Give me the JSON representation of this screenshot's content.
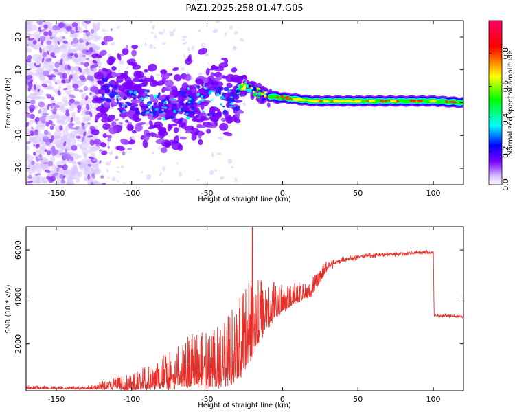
{
  "title": "PAZ1.2025.258.01.47.G05",
  "chart_data": [
    {
      "type": "heatmap",
      "name": "spectrogram",
      "xlabel": "Height of straight line (km)",
      "ylabel": "Frequency (Hz)",
      "xlim": [
        -170,
        120
      ],
      "ylim": [
        -25,
        25
      ],
      "xticks": [
        -150,
        -100,
        -50,
        0,
        50,
        100
      ],
      "yticks": [
        -20,
        -10,
        0,
        10,
        20
      ],
      "xtick_labels": [
        "-150",
        "-100",
        "-50",
        "0",
        "50",
        "100"
      ],
      "ytick_labels": [
        "-20",
        "-10",
        "0",
        "10",
        "20"
      ],
      "ridge_frequency_hz": [
        [
          -120,
          3
        ],
        [
          -110,
          2
        ],
        [
          -100,
          1
        ],
        [
          -90,
          0
        ],
        [
          -80,
          -1
        ],
        [
          -70,
          -1.5
        ],
        [
          -60,
          0
        ],
        [
          -50,
          2
        ],
        [
          -40,
          1
        ],
        [
          -33,
          0
        ],
        [
          -30,
          4
        ],
        [
          -25,
          5
        ],
        [
          -20,
          4
        ],
        [
          -15,
          3
        ],
        [
          -10,
          2
        ],
        [
          0,
          1.5
        ],
        [
          20,
          0.5
        ],
        [
          50,
          0.5
        ],
        [
          100,
          0.5
        ],
        [
          120,
          0
        ]
      ],
      "colorbar": {
        "label": "Normalized spectral amplitude",
        "range": [
          0,
          1
        ],
        "ticks": [
          0.0,
          0.2,
          0.4,
          0.6,
          0.8
        ],
        "tick_labels": [
          "0.0",
          "0.2",
          "0.4",
          "0.6",
          "0.8"
        ],
        "colors": [
          "#ffffff",
          "#7b00ff",
          "#0000ff",
          "#00ffff",
          "#00ff00",
          "#ffff00",
          "#ff0000",
          "#ff0066"
        ]
      }
    },
    {
      "type": "line",
      "name": "snr",
      "xlabel": "Height of straight line (km)",
      "ylabel": "SNR (10 * v/v)",
      "xlim": [
        -170,
        120
      ],
      "ylim": [
        0,
        7000
      ],
      "xticks": [
        -150,
        -100,
        -50,
        0,
        50,
        100
      ],
      "yticks": [
        2000,
        4000,
        6000
      ],
      "xtick_labels": [
        "-150",
        "-100",
        "-50",
        "0",
        "50",
        "100"
      ],
      "ytick_labels": [
        "2000",
        "4000",
        "6000"
      ],
      "color": "#e8302a",
      "envelope": {
        "x": [
          -170,
          -130,
          -120,
          -110,
          -100,
          -90,
          -80,
          -70,
          -60,
          -50,
          -40,
          -30,
          -25,
          -20,
          -15,
          -10,
          -5,
          0,
          10,
          20,
          25,
          30,
          40,
          50,
          60,
          70,
          80,
          90,
          100,
          100.5,
          110,
          120
        ],
        "mean": [
          120,
          100,
          150,
          200,
          250,
          350,
          500,
          650,
          800,
          900,
          1000,
          1400,
          1800,
          2300,
          2900,
          3300,
          3500,
          3700,
          4000,
          4300,
          4800,
          5300,
          5600,
          5700,
          5780,
          5820,
          5850,
          5900,
          5900,
          3200,
          3200,
          3150
        ],
        "spread": [
          60,
          60,
          150,
          250,
          350,
          450,
          600,
          800,
          1000,
          1100,
          1300,
          1600,
          1800,
          1500,
          1200,
          1000,
          700,
          500,
          400,
          350,
          250,
          200,
          130,
          110,
          100,
          100,
          100,
          100,
          100,
          80,
          60,
          60
        ]
      },
      "peak": {
        "x": -20,
        "y": 7000
      }
    }
  ]
}
